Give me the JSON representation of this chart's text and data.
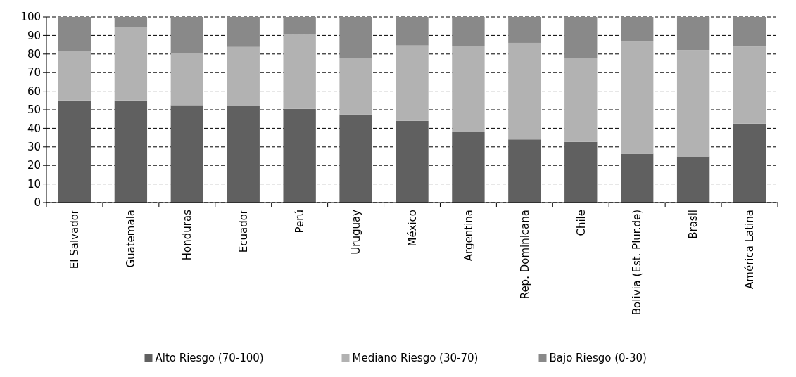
{
  "chart_data": {
    "type": "bar",
    "stacked": true,
    "categories": [
      "El Salvador",
      "Guatemala",
      "Honduras",
      "Ecuador",
      "Perú",
      "Uruguay",
      "México",
      "Argentina",
      "Rep. Dominicana",
      "Chile",
      "Bolivia (Est. Plur.de)",
      "Brasil",
      "América Latina"
    ],
    "series": [
      {
        "name": "Alto Riesgo (70-100)",
        "color": "#606060",
        "values": [
          55,
          55,
          52.5,
          52,
          50.5,
          47.5,
          44,
          38,
          34,
          32.7,
          26.3,
          24.8,
          42.5
        ]
      },
      {
        "name": "Mediano Riesgo (30-70)",
        "color": "#b2b2b2",
        "values": [
          26.5,
          39.5,
          28,
          31.8,
          40,
          30.5,
          40.6,
          46.3,
          52,
          45,
          60.4,
          57.3,
          41.5
        ]
      },
      {
        "name": "Bajo Riesgo (0-30)",
        "color": "#898989",
        "values": [
          18.5,
          5.5,
          19.5,
          16.2,
          9.5,
          22,
          15.4,
          15.7,
          14,
          22.3,
          13.3,
          17.9,
          16
        ]
      }
    ],
    "ylim": [
      0,
      100
    ],
    "yticks": [
      0,
      10,
      20,
      30,
      40,
      50,
      60,
      70,
      80,
      90,
      100
    ],
    "grid": "y",
    "legend": "bottom"
  }
}
